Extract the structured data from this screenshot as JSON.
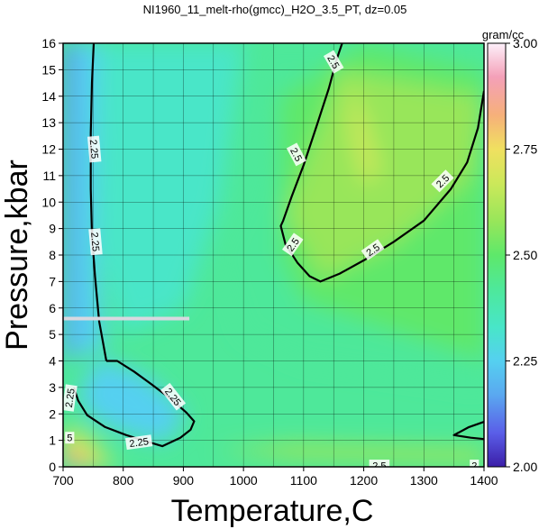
{
  "chart_data": {
    "type": "heatmap",
    "title": "NI1960_11_melt-rho(gmcc)_H2O_3.5_PT, dz=0.05",
    "xlabel": "Temperature,C",
    "ylabel": "Pressure,kbar",
    "xlim": [
      700,
      1400
    ],
    "ylim": [
      0,
      16
    ],
    "x_ticks": [
      "700",
      "800",
      "900",
      "1000",
      "1100",
      "1200",
      "1300",
      "1400"
    ],
    "y_ticks": [
      "0",
      "1",
      "2",
      "3",
      "4",
      "5",
      "6",
      "7",
      "8",
      "9",
      "10",
      "11",
      "12",
      "13",
      "14",
      "15",
      "16"
    ],
    "grid": true,
    "colorbar": {
      "unit": "gram/cc",
      "range": [
        2.0,
        3.0
      ],
      "ticks": [
        "2.00",
        "2.25",
        "2.50",
        "2.75",
        "3.00"
      ],
      "stops": [
        {
          "v": 2.0,
          "color": "#3b1ea8"
        },
        {
          "v": 2.08,
          "color": "#5a5ee8"
        },
        {
          "v": 2.17,
          "color": "#5aa8f0"
        },
        {
          "v": 2.25,
          "color": "#55d0f0"
        },
        {
          "v": 2.33,
          "color": "#48e6c8"
        },
        {
          "v": 2.42,
          "color": "#4ee89a"
        },
        {
          "v": 2.5,
          "color": "#5ee86a"
        },
        {
          "v": 2.58,
          "color": "#98e65a"
        },
        {
          "v": 2.67,
          "color": "#cce85a"
        },
        {
          "v": 2.75,
          "color": "#f0e060"
        },
        {
          "v": 2.83,
          "color": "#f6b07a"
        },
        {
          "v": 2.92,
          "color": "#f4a0b8"
        },
        {
          "v": 3.0,
          "color": "#fdf0fa"
        }
      ]
    },
    "contour_lines": [
      {
        "level": "2.25",
        "points": [
          [
            751,
            16
          ],
          [
            748,
            14.5
          ],
          [
            746,
            12.6
          ],
          [
            746,
            10.5
          ],
          [
            748,
            8.8
          ],
          [
            753,
            7.2
          ],
          [
            760,
            5.5
          ],
          [
            772,
            4.0
          ]
        ]
      },
      {
        "level": "2.25",
        "points": [
          [
            718,
            3.0
          ],
          [
            725,
            2.5
          ],
          [
            740,
            1.95
          ],
          [
            770,
            1.5
          ],
          [
            805,
            1.2
          ],
          [
            840,
            0.95
          ],
          [
            865,
            0.78
          ],
          [
            895,
            1.1
          ],
          [
            912,
            1.4
          ],
          [
            918,
            1.72
          ],
          [
            905,
            2.05
          ],
          [
            880,
            2.55
          ],
          [
            848,
            3.1
          ],
          [
            818,
            3.6
          ],
          [
            790,
            4.0
          ],
          [
            772,
            4.0
          ]
        ]
      },
      {
        "level": "2.5",
        "points": [
          [
            1164,
            16
          ],
          [
            1155,
            15.4
          ],
          [
            1142,
            14.3
          ],
          [
            1122,
            12.9
          ],
          [
            1100,
            11.4
          ],
          [
            1080,
            10.2
          ],
          [
            1066,
            9.3
          ],
          [
            1062,
            9.1
          ],
          [
            1070,
            8.4
          ],
          [
            1090,
            7.7
          ],
          [
            1110,
            7.2
          ],
          [
            1128,
            7.0
          ],
          [
            1160,
            7.3
          ],
          [
            1200,
            7.8
          ],
          [
            1250,
            8.5
          ],
          [
            1300,
            9.3
          ],
          [
            1345,
            10.5
          ],
          [
            1372,
            11.5
          ],
          [
            1390,
            12.8
          ],
          [
            1400,
            14.2
          ]
        ]
      },
      {
        "level": "",
        "points": [
          [
            1400,
            1.7
          ],
          [
            1375,
            1.5
          ],
          [
            1350,
            1.2
          ],
          [
            1378,
            1.1
          ],
          [
            1400,
            1.05
          ]
        ]
      }
    ],
    "contour_labels": [
      {
        "text": "2.25",
        "x": 752,
        "y": 12.0,
        "angle": 85
      },
      {
        "text": "2.25",
        "x": 754,
        "y": 8.5,
        "angle": 85
      },
      {
        "text": "2.25",
        "x": 883,
        "y": 2.65,
        "angle": 52
      },
      {
        "text": "2.25",
        "x": 826,
        "y": 0.93,
        "angle": -8
      },
      {
        "text": "2.25",
        "x": 711,
        "y": 2.6,
        "angle": -82
      },
      {
        "text": "2.5",
        "x": 1150,
        "y": 15.3,
        "angle": 60
      },
      {
        "text": "2.5",
        "x": 1088,
        "y": 11.8,
        "angle": 62
      },
      {
        "text": "2.5",
        "x": 1082,
        "y": 8.4,
        "angle": -55
      },
      {
        "text": "2.5",
        "x": 1215,
        "y": 8.2,
        "angle": -35
      },
      {
        "text": "2.5",
        "x": 1331,
        "y": 10.8,
        "angle": -45
      },
      {
        "text": "2.5",
        "x": 1226,
        "y": 0.05,
        "angle": 0
      },
      {
        "text": "5",
        "x": 711,
        "y": 1.1,
        "angle": 0
      },
      {
        "text": "2",
        "x": 1384,
        "y": 0.05,
        "angle": 0
      }
    ],
    "annotation_line": {
      "y": 5.6,
      "x_from": 700,
      "x_to": 910,
      "color": "#d8d8e0"
    }
  }
}
